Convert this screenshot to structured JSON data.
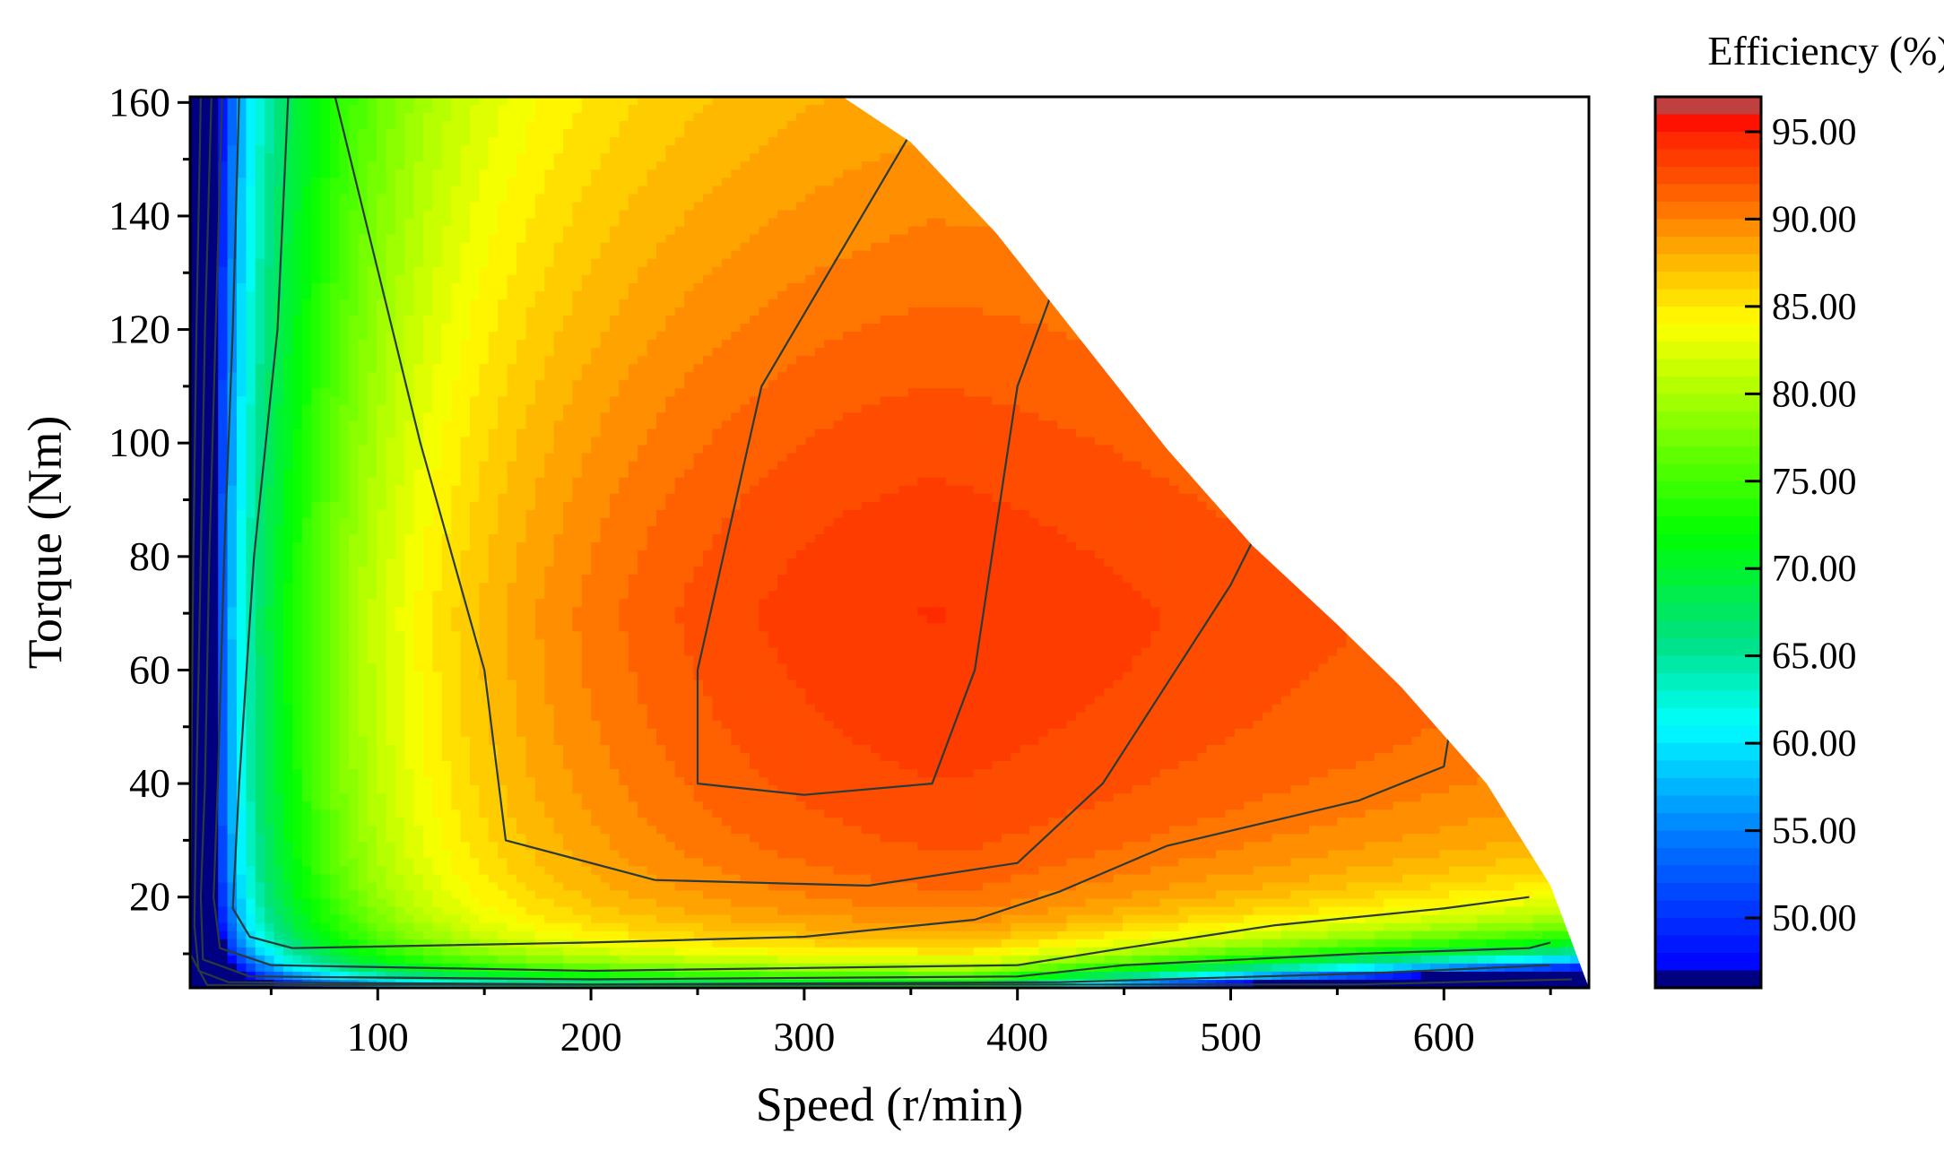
{
  "chart_data": {
    "type": "heatmap",
    "subtype": "filled-contour efficiency map",
    "title": "",
    "xlabel": "Speed (r/min)",
    "ylabel": "Torque (Nm)",
    "xlim": [
      12,
      668
    ],
    "ylim": [
      4,
      161
    ],
    "x_ticks": [
      100,
      200,
      300,
      400,
      500,
      600
    ],
    "y_ticks": [
      20,
      40,
      60,
      80,
      100,
      120,
      140,
      160
    ],
    "colorbar": {
      "title": "Efficiency (%)",
      "range": [
        46,
        97
      ],
      "ticks": [
        "50.00",
        "55.00",
        "60.00",
        "65.00",
        "70.00",
        "75.00",
        "80.00",
        "85.00",
        "90.00",
        "95.00"
      ],
      "colors": [
        {
          "value": 46,
          "color": "#000000"
        },
        {
          "value": 47,
          "color": "#0000ff"
        },
        {
          "value": 55,
          "color": "#0080ff"
        },
        {
          "value": 61,
          "color": "#00ffff"
        },
        {
          "value": 66,
          "color": "#00e080"
        },
        {
          "value": 72,
          "color": "#00ff00"
        },
        {
          "value": 78,
          "color": "#80ff00"
        },
        {
          "value": 84,
          "color": "#ffff00"
        },
        {
          "value": 89,
          "color": "#ff9900"
        },
        {
          "value": 92,
          "color": "#ff5500"
        },
        {
          "value": 95,
          "color": "#ff2200"
        },
        {
          "value": 96,
          "color": "#ff0000"
        },
        {
          "value": 97,
          "color": "#808080"
        }
      ]
    },
    "torque_speed_envelope": [
      [
        12,
        161
      ],
      [
        318,
        161
      ],
      [
        350,
        153
      ],
      [
        390,
        137
      ],
      [
        430,
        118
      ],
      [
        470,
        99
      ],
      [
        510,
        82
      ],
      [
        550,
        68
      ],
      [
        580,
        57
      ],
      [
        620,
        40
      ],
      [
        650,
        22
      ],
      [
        660,
        12
      ],
      [
        668,
        4
      ]
    ],
    "efficiency_contours": [
      {
        "level": 95,
        "points": [
          [
            360,
            161
          ],
          [
            280,
            110
          ],
          [
            250,
            60
          ],
          [
            250,
            40
          ],
          [
            300,
            38
          ],
          [
            360,
            40
          ],
          [
            380,
            60
          ],
          [
            400,
            110
          ],
          [
            450,
            161
          ]
        ]
      },
      {
        "level": 93,
        "points": [
          [
            80,
            161
          ],
          [
            120,
            100
          ],
          [
            150,
            60
          ],
          [
            160,
            30
          ],
          [
            230,
            23
          ],
          [
            330,
            22
          ],
          [
            400,
            26
          ],
          [
            440,
            40
          ],
          [
            500,
            75
          ],
          [
            520,
            90
          ]
        ]
      },
      {
        "level": 90,
        "points": [
          [
            58,
            161
          ],
          [
            53,
            120
          ],
          [
            42,
            80
          ],
          [
            35,
            40
          ],
          [
            32,
            18
          ],
          [
            40,
            13
          ],
          [
            60,
            11
          ],
          [
            200,
            12
          ],
          [
            300,
            13
          ],
          [
            380,
            16
          ],
          [
            420,
            21
          ],
          [
            470,
            29
          ],
          [
            560,
            37
          ],
          [
            600,
            43
          ],
          [
            603,
            50
          ]
        ]
      },
      {
        "level": 85,
        "points": [
          [
            35,
            161
          ],
          [
            32,
            120
          ],
          [
            28,
            80
          ],
          [
            25,
            40
          ],
          [
            23,
            20
          ],
          [
            26,
            11
          ],
          [
            50,
            8
          ],
          [
            200,
            7
          ],
          [
            400,
            8
          ],
          [
            450,
            11
          ],
          [
            520,
            15
          ],
          [
            600,
            18
          ],
          [
            640,
            20
          ]
        ]
      },
      {
        "level": 80,
        "points": [
          [
            27,
            161
          ],
          [
            24,
            120
          ],
          [
            21,
            80
          ],
          [
            19,
            40
          ],
          [
            17,
            20
          ],
          [
            18,
            9
          ],
          [
            40,
            6
          ],
          [
            200,
            5.5
          ],
          [
            400,
            6
          ],
          [
            450,
            8
          ],
          [
            560,
            10
          ],
          [
            640,
            11
          ],
          [
            650,
            12
          ]
        ]
      },
      {
        "level": 75,
        "points": [
          [
            22,
            161
          ],
          [
            19,
            120
          ],
          [
            17,
            80
          ],
          [
            15,
            40
          ],
          [
            14,
            15
          ],
          [
            16,
            7
          ],
          [
            30,
            5
          ],
          [
            200,
            4.6
          ],
          [
            420,
            5
          ],
          [
            560,
            6.5
          ],
          [
            650,
            8
          ]
        ]
      },
      {
        "level": 70,
        "points": [
          [
            17,
            161
          ],
          [
            15,
            120
          ],
          [
            13.5,
            80
          ],
          [
            12.5,
            40
          ],
          [
            12,
            10
          ],
          [
            20,
            4.5
          ],
          [
            560,
            4.6
          ],
          [
            660,
            5.5
          ]
        ]
      }
    ]
  }
}
